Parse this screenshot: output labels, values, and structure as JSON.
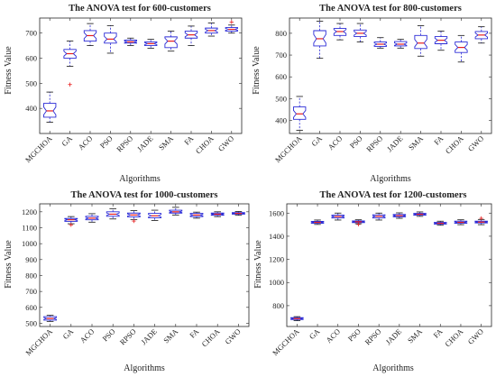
{
  "chart_data": [
    {
      "type": "boxplot",
      "title": "The ANOVA test for 600-customers",
      "xlabel": "Algorithms",
      "ylabel": "Fitness Value",
      "ylim": [
        300,
        760
      ],
      "yticks": [
        400,
        500,
        600,
        700
      ],
      "categories": [
        "MGCHOA",
        "GA",
        "ACO",
        "PSO",
        "RPSO",
        "JADE",
        "SMA",
        "FA",
        "CHOA",
        "GWO"
      ],
      "boxes": [
        {
          "min": 345,
          "q1": 365,
          "median": 390,
          "q3": 420,
          "max": 465,
          "outliers": []
        },
        {
          "min": 568,
          "q1": 600,
          "median": 618,
          "q3": 635,
          "max": 668,
          "outliers": [
            495
          ]
        },
        {
          "min": 650,
          "q1": 668,
          "median": 690,
          "q3": 710,
          "max": 738,
          "outliers": []
        },
        {
          "min": 620,
          "q1": 660,
          "median": 676,
          "q3": 700,
          "max": 730,
          "outliers": []
        },
        {
          "min": 650,
          "q1": 660,
          "median": 665,
          "q3": 672,
          "max": 680,
          "outliers": []
        },
        {
          "min": 640,
          "q1": 650,
          "median": 658,
          "q3": 665,
          "max": 675,
          "outliers": []
        },
        {
          "min": 628,
          "q1": 642,
          "median": 668,
          "q3": 685,
          "max": 708,
          "outliers": []
        },
        {
          "min": 650,
          "q1": 680,
          "median": 693,
          "q3": 708,
          "max": 728,
          "outliers": []
        },
        {
          "min": 688,
          "q1": 700,
          "median": 710,
          "q3": 720,
          "max": 740,
          "outliers": []
        },
        {
          "min": 700,
          "q1": 708,
          "median": 715,
          "q3": 722,
          "max": 732,
          "outliers": [
            744
          ]
        }
      ]
    },
    {
      "type": "boxplot",
      "title": "The ANOVA test for 800-customers",
      "xlabel": "Algorithms",
      "ylabel": "Fitness Value",
      "ylim": [
        340,
        870
      ],
      "yticks": [
        400,
        500,
        600,
        700,
        800
      ],
      "categories": [
        "MGCHOA",
        "GA",
        "ACO",
        "PSO",
        "RPSO",
        "JADE",
        "SMA",
        "FA",
        "CHOA",
        "GWO"
      ],
      "boxes": [
        {
          "min": 355,
          "q1": 405,
          "median": 430,
          "q3": 462,
          "max": 510,
          "outliers": []
        },
        {
          "min": 685,
          "q1": 742,
          "median": 775,
          "q3": 812,
          "max": 855,
          "outliers": []
        },
        {
          "min": 770,
          "q1": 790,
          "median": 808,
          "q3": 822,
          "max": 845,
          "outliers": []
        },
        {
          "min": 760,
          "q1": 785,
          "median": 800,
          "q3": 815,
          "max": 845,
          "outliers": []
        },
        {
          "min": 732,
          "q1": 740,
          "median": 750,
          "q3": 760,
          "max": 780,
          "outliers": []
        },
        {
          "min": 732,
          "q1": 742,
          "median": 750,
          "q3": 762,
          "max": 772,
          "outliers": []
        },
        {
          "min": 695,
          "q1": 730,
          "median": 755,
          "q3": 790,
          "max": 835,
          "outliers": []
        },
        {
          "min": 722,
          "q1": 752,
          "median": 768,
          "q3": 785,
          "max": 810,
          "outliers": []
        },
        {
          "min": 668,
          "q1": 712,
          "median": 735,
          "q3": 760,
          "max": 790,
          "outliers": []
        },
        {
          "min": 755,
          "q1": 775,
          "median": 792,
          "q3": 808,
          "max": 830,
          "outliers": []
        }
      ]
    },
    {
      "type": "boxplot",
      "title": "The ANOVA test for 1000-customers",
      "xlabel": "Algorithms",
      "ylabel": "Fitness Value",
      "ylim": [
        480,
        1250
      ],
      "yticks": [
        500,
        600,
        700,
        800,
        900,
        1000,
        1100,
        1200
      ],
      "categories": [
        "MGCHOA",
        "GA",
        "ACO",
        "PSO",
        "RPSO",
        "JADE",
        "SMA",
        "FA",
        "CHOA",
        "GWO"
      ],
      "boxes": [
        {
          "min": 512,
          "q1": 520,
          "median": 530,
          "q3": 542,
          "max": 550,
          "outliers": []
        },
        {
          "min": 1125,
          "q1": 1140,
          "median": 1150,
          "q3": 1158,
          "max": 1170,
          "outliers": [
            1118
          ]
        },
        {
          "min": 1135,
          "q1": 1150,
          "median": 1160,
          "q3": 1172,
          "max": 1188,
          "outliers": []
        },
        {
          "min": 1155,
          "q1": 1172,
          "median": 1185,
          "q3": 1200,
          "max": 1220,
          "outliers": []
        },
        {
          "min": 1152,
          "q1": 1168,
          "median": 1180,
          "q3": 1192,
          "max": 1208,
          "outliers": [
            1142
          ]
        },
        {
          "min": 1145,
          "q1": 1162,
          "median": 1175,
          "q3": 1190,
          "max": 1210,
          "outliers": []
        },
        {
          "min": 1180,
          "q1": 1192,
          "median": 1200,
          "q3": 1210,
          "max": 1228,
          "outliers": []
        },
        {
          "min": 1160,
          "q1": 1170,
          "median": 1180,
          "q3": 1190,
          "max": 1198,
          "outliers": []
        },
        {
          "min": 1170,
          "q1": 1178,
          "median": 1185,
          "q3": 1192,
          "max": 1200,
          "outliers": []
        },
        {
          "min": 1178,
          "q1": 1185,
          "median": 1190,
          "q3": 1195,
          "max": 1202,
          "outliers": []
        }
      ]
    },
    {
      "type": "boxplot",
      "title": "The ANOVA test for 1200-customers",
      "xlabel": "Algorithms",
      "ylabel": "Fitness Value",
      "ylim": [
        620,
        1680
      ],
      "yticks": [
        800,
        1000,
        1200,
        1400,
        1600
      ],
      "categories": [
        "MGCHOA",
        "GA",
        "ACO",
        "PSO",
        "RPSO",
        "JADE",
        "SMA",
        "FA",
        "CHOA",
        "GWO"
      ],
      "boxes": [
        {
          "min": 670,
          "q1": 680,
          "median": 688,
          "q3": 696,
          "max": 705,
          "outliers": []
        },
        {
          "min": 1502,
          "q1": 1512,
          "median": 1520,
          "q3": 1528,
          "max": 1540,
          "outliers": []
        },
        {
          "min": 1540,
          "q1": 1558,
          "median": 1570,
          "q3": 1582,
          "max": 1600,
          "outliers": []
        },
        {
          "min": 1508,
          "q1": 1518,
          "median": 1525,
          "q3": 1532,
          "max": 1542,
          "outliers": [
            1502
          ]
        },
        {
          "min": 1540,
          "q1": 1558,
          "median": 1572,
          "q3": 1585,
          "max": 1600,
          "outliers": []
        },
        {
          "min": 1555,
          "q1": 1568,
          "median": 1578,
          "q3": 1588,
          "max": 1602,
          "outliers": []
        },
        {
          "min": 1572,
          "q1": 1582,
          "median": 1590,
          "q3": 1598,
          "max": 1610,
          "outliers": []
        },
        {
          "min": 1495,
          "q1": 1505,
          "median": 1512,
          "q3": 1520,
          "max": 1530,
          "outliers": []
        },
        {
          "min": 1500,
          "q1": 1512,
          "median": 1520,
          "q3": 1530,
          "max": 1542,
          "outliers": []
        },
        {
          "min": 1500,
          "q1": 1515,
          "median": 1522,
          "q3": 1530,
          "max": 1545,
          "outliers": [
            1555
          ]
        }
      ]
    }
  ]
}
